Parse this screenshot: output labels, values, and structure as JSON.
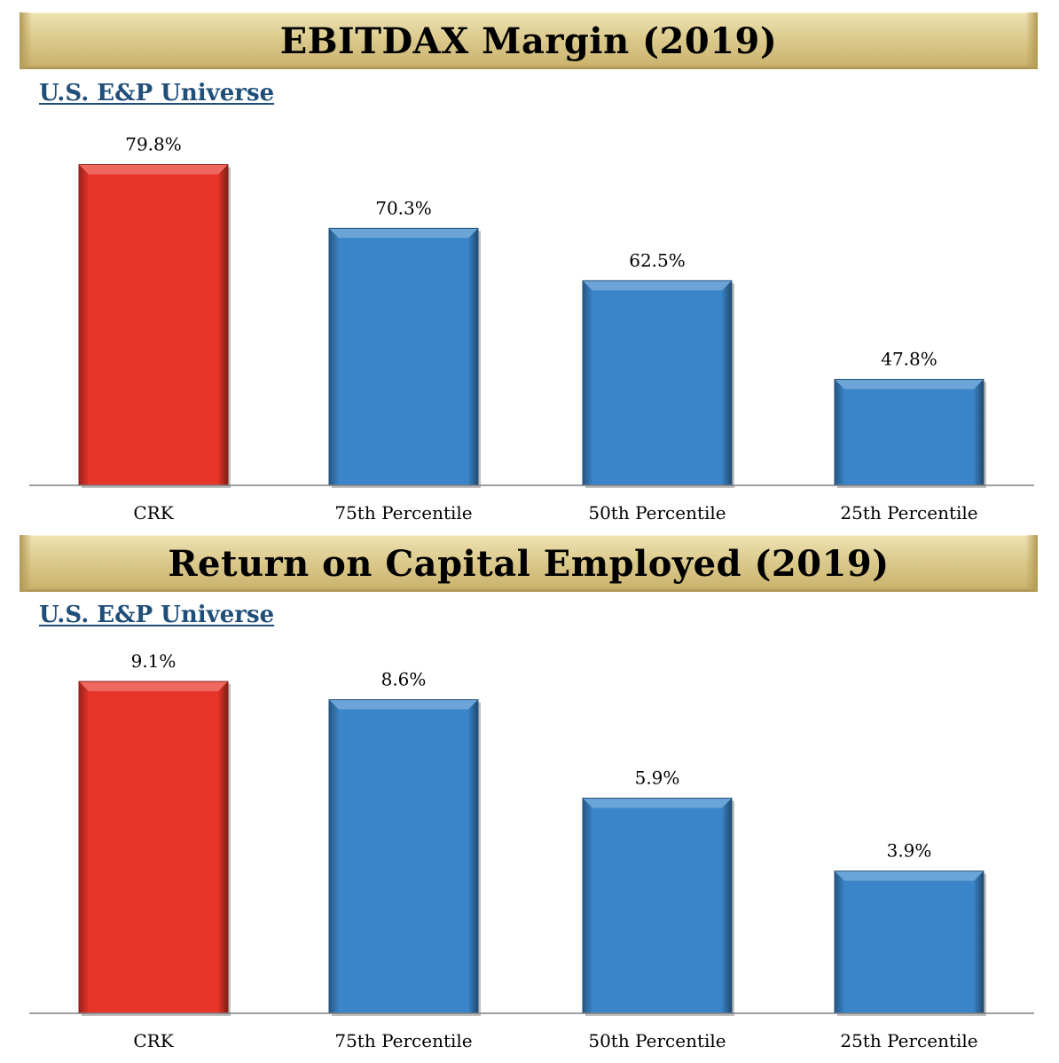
{
  "charts": [
    {
      "title": "EBITDAX Margin (2019)",
      "subtitle": "U.S. E&P Universe"
    },
    {
      "title": "Return on Capital Employed (2019)",
      "subtitle": "U.S. E&P Universe"
    }
  ],
  "chart_data": [
    {
      "type": "bar",
      "title": "EBITDAX Margin (2019)",
      "subtitle": "U.S. E&P Universe",
      "categories": [
        "CRK",
        "75th Percentile",
        "50th Percentile",
        "25th Percentile"
      ],
      "values": [
        79.8,
        70.3,
        62.5,
        47.8
      ],
      "value_labels": [
        "79.8%",
        "70.3%",
        "62.5%",
        "47.8%"
      ],
      "colors": [
        "#e8352a",
        "#3a85c9",
        "#3a85c9",
        "#3a85c9"
      ],
      "ylim": [
        32,
        80
      ],
      "grid": false
    },
    {
      "type": "bar",
      "title": "Return on Capital Employed (2019)",
      "subtitle": "U.S. E&P Universe",
      "categories": [
        "CRK",
        "75th Percentile",
        "50th Percentile",
        "25th Percentile"
      ],
      "values": [
        9.1,
        8.6,
        5.9,
        3.9
      ],
      "value_labels": [
        "9.1%",
        "8.6%",
        "5.9%",
        "3.9%"
      ],
      "colors": [
        "#e8352a",
        "#3a85c9",
        "#3a85c9",
        "#3a85c9"
      ],
      "ylim": [
        0,
        9.1
      ],
      "grid": false
    }
  ]
}
